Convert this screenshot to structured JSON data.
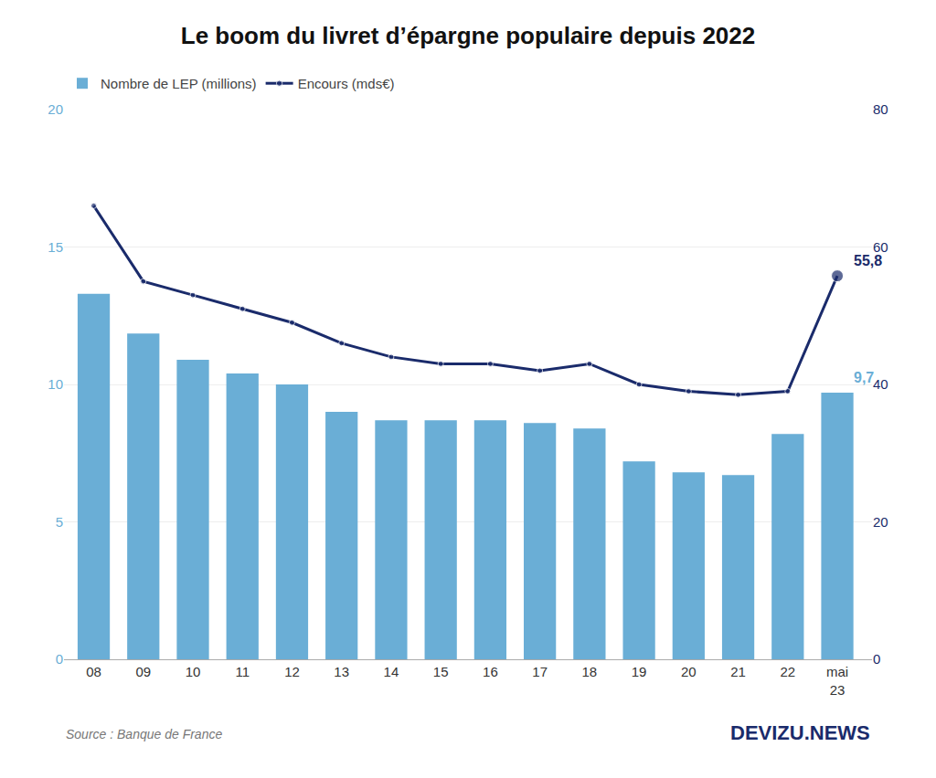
{
  "chart_data": {
    "type": "bar",
    "title": "Le boom du livret d’épargne populaire depuis 2022",
    "categories": [
      "08",
      "09",
      "10",
      "11",
      "12",
      "13",
      "14",
      "15",
      "16",
      "17",
      "18",
      "19",
      "20",
      "21",
      "22",
      "mai\n23"
    ],
    "series": [
      {
        "name": "Nombre de LEP (millions)",
        "type": "bar",
        "color": "#6aaed6",
        "values": [
          13.3,
          11.85,
          10.9,
          10.4,
          10.0,
          9.0,
          8.7,
          8.7,
          8.7,
          8.6,
          8.4,
          7.2,
          6.8,
          6.7,
          8.2,
          9.7
        ]
      },
      {
        "name": "Encours (mds€)",
        "type": "line",
        "axis": "y2",
        "color": "#1a2b6b",
        "marker": "circle",
        "values": [
          66.0,
          55.0,
          53.0,
          51.0,
          49.0,
          46.0,
          44.0,
          43.0,
          43.0,
          42.0,
          43.0,
          40.0,
          39.0,
          38.5,
          39.0,
          55.8
        ]
      }
    ],
    "ylim": [
      0,
      20
    ],
    "yticks": [
      0,
      5,
      10,
      15,
      20
    ],
    "y2lim": [
      0,
      80
    ],
    "y2ticks": [
      0,
      20,
      40,
      60,
      80
    ],
    "grid": true,
    "legend": "top",
    "annotations": [
      {
        "text": "9,7",
        "x": "mai\n23",
        "y": 9.7
      },
      {
        "text": "55,8",
        "x": "mai\n23",
        "y": 55.8,
        "axis": "y2"
      }
    ],
    "source": "Source : Banque de France",
    "credit": "DEVIZU.NEWS"
  }
}
